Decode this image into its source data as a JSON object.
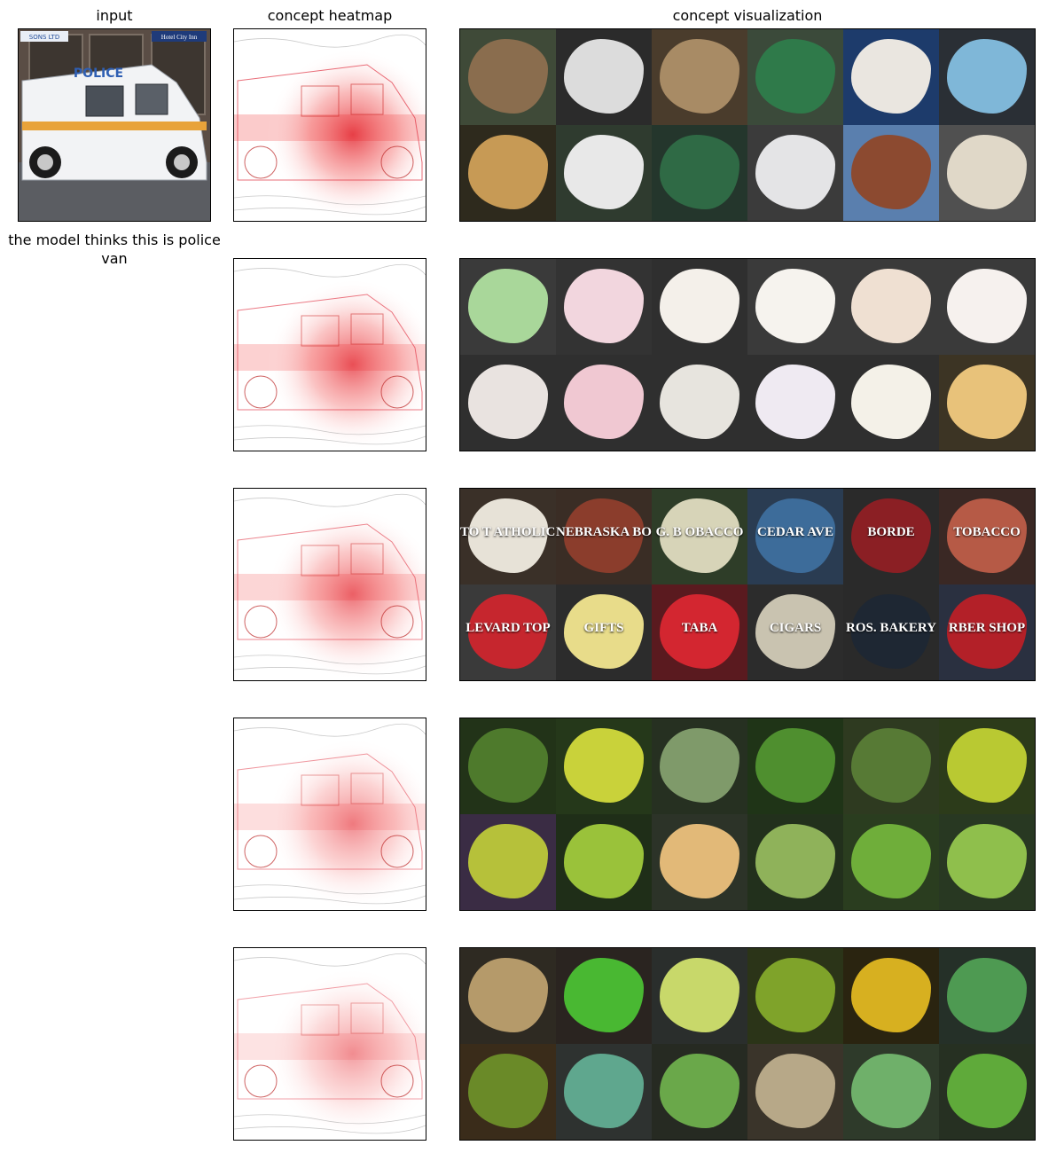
{
  "headers": {
    "input": "input",
    "heatmap": "concept heatmap",
    "visualization": "concept visualization"
  },
  "caption": "the model thinks this is police van",
  "input_image": {
    "van_text": "POLICE",
    "sign_left": "SONS LTD",
    "sign_right": "Hotel City Inn",
    "colors": {
      "van": "#f2f3f5",
      "stripe": "#e8a33a",
      "road": "#5b5d62",
      "wall": "#5a4d45"
    }
  },
  "rows": [
    {
      "heat_intensity": 1.0,
      "tiles": [
        {
          "bg": "#3f4a38",
          "fg": "#8a6d4e"
        },
        {
          "bg": "#2b2b2b",
          "fg": "#dcdcdc"
        },
        {
          "bg": "#4a3c2c",
          "fg": "#a88b65"
        },
        {
          "bg": "#3b4a3a",
          "fg": "#2f7a4a"
        },
        {
          "bg": "#1d3b6b",
          "fg": "#eae6e0"
        },
        {
          "bg": "#2a2f35",
          "fg": "#7fb7d8"
        },
        {
          "bg": "#2e2a1d",
          "fg": "#c79a55"
        },
        {
          "bg": "#2f3b2f",
          "fg": "#e8e8e8"
        },
        {
          "bg": "#24362c",
          "fg": "#2f6a45"
        },
        {
          "bg": "#3b3b3b",
          "fg": "#e4e4e6"
        },
        {
          "bg": "#5a7fae",
          "fg": "#8c4a30"
        },
        {
          "bg": "#505050",
          "fg": "#e0d8c8"
        }
      ]
    },
    {
      "heat_intensity": 0.9,
      "tiles": [
        {
          "bg": "#3a3a3a",
          "fg": "#a9d79a"
        },
        {
          "bg": "#333333",
          "fg": "#f2d6de"
        },
        {
          "bg": "#2f2f2f",
          "fg": "#f4f0ea"
        },
        {
          "bg": "#3a3a3a",
          "fg": "#f6f3ee"
        },
        {
          "bg": "#3a3a3a",
          "fg": "#efe0d2"
        },
        {
          "bg": "#3a3a3a",
          "fg": "#f6f1ee"
        },
        {
          "bg": "#2f2f2f",
          "fg": "#e9e3e0"
        },
        {
          "bg": "#2f2f2f",
          "fg": "#f0c8d2"
        },
        {
          "bg": "#2f2f2f",
          "fg": "#e7e4de"
        },
        {
          "bg": "#2f2f2f",
          "fg": "#efeaf2"
        },
        {
          "bg": "#2f2f2f",
          "fg": "#f4f1e8"
        },
        {
          "bg": "#3c3424",
          "fg": "#e8c27a"
        }
      ]
    },
    {
      "heat_intensity": 0.8,
      "tiles": [
        {
          "bg": "#3a3028",
          "fg": "#e7e2d7",
          "text": "TO T ATHOLIC C"
        },
        {
          "bg": "#3a2d25",
          "fg": "#8b3d2c",
          "text": "NEBRASKA BOOKSTORE"
        },
        {
          "bg": "#2e3d28",
          "fg": "#d7d4b8",
          "text": "G. B OBACCO"
        },
        {
          "bg": "#2a3c52",
          "fg": "#3d6c9a",
          "text": "CEDAR AVE"
        },
        {
          "bg": "#2a2a2a",
          "fg": "#8b1f24",
          "text": "BORDE"
        },
        {
          "bg": "#3a2824",
          "fg": "#b65a46",
          "text": "TOBACCO"
        },
        {
          "bg": "#3a3a3a",
          "fg": "#c6262e",
          "text": "LEVARD TOP"
        },
        {
          "bg": "#2c2c2c",
          "fg": "#e8dc8a",
          "text": "GIFTS"
        },
        {
          "bg": "#5a1a1f",
          "fg": "#d32630",
          "text": "TABA"
        },
        {
          "bg": "#2c2c2c",
          "fg": "#c9c3b0",
          "text": "CIGARS"
        },
        {
          "bg": "#2a2a2a",
          "fg": "#1e2733",
          "text": "ROS. BAKERY"
        },
        {
          "bg": "#2a3040",
          "fg": "#b32028",
          "text": "RBER SHOP"
        }
      ]
    },
    {
      "heat_intensity": 0.65,
      "tiles": [
        {
          "bg": "#223318",
          "fg": "#4e7a2c"
        },
        {
          "bg": "#25381a",
          "fg": "#c9d23a"
        },
        {
          "bg": "#263021",
          "fg": "#7f9a6a"
        },
        {
          "bg": "#1f3417",
          "fg": "#4f8f2f"
        },
        {
          "bg": "#2e3a20",
          "fg": "#577a35"
        },
        {
          "bg": "#2c3b1a",
          "fg": "#b9c932"
        },
        {
          "bg": "#3a2c44",
          "fg": "#b6c13a"
        },
        {
          "bg": "#1f2e18",
          "fg": "#9ac23a"
        },
        {
          "bg": "#2c3328",
          "fg": "#e2b978"
        },
        {
          "bg": "#22301c",
          "fg": "#8fb25a"
        },
        {
          "bg": "#2a3d1f",
          "fg": "#6fae3a"
        },
        {
          "bg": "#283822",
          "fg": "#8fbf4c"
        }
      ]
    },
    {
      "heat_intensity": 0.55,
      "tiles": [
        {
          "bg": "#2e2a22",
          "fg": "#b59a6a"
        },
        {
          "bg": "#2a2420",
          "fg": "#49b832"
        },
        {
          "bg": "#2a2e2c",
          "fg": "#c8d86a"
        },
        {
          "bg": "#2b3418",
          "fg": "#7fa32a"
        },
        {
          "bg": "#2a2410",
          "fg": "#d7b020"
        },
        {
          "bg": "#253028",
          "fg": "#4e9a52"
        },
        {
          "bg": "#3a2c1a",
          "fg": "#6a8a28"
        },
        {
          "bg": "#2e3230",
          "fg": "#5fa78e"
        },
        {
          "bg": "#262a22",
          "fg": "#6aa84a"
        },
        {
          "bg": "#3a342a",
          "fg": "#b7a888"
        },
        {
          "bg": "#2e3a2a",
          "fg": "#6fb06a"
        },
        {
          "bg": "#263022",
          "fg": "#5faa3a"
        }
      ]
    }
  ]
}
